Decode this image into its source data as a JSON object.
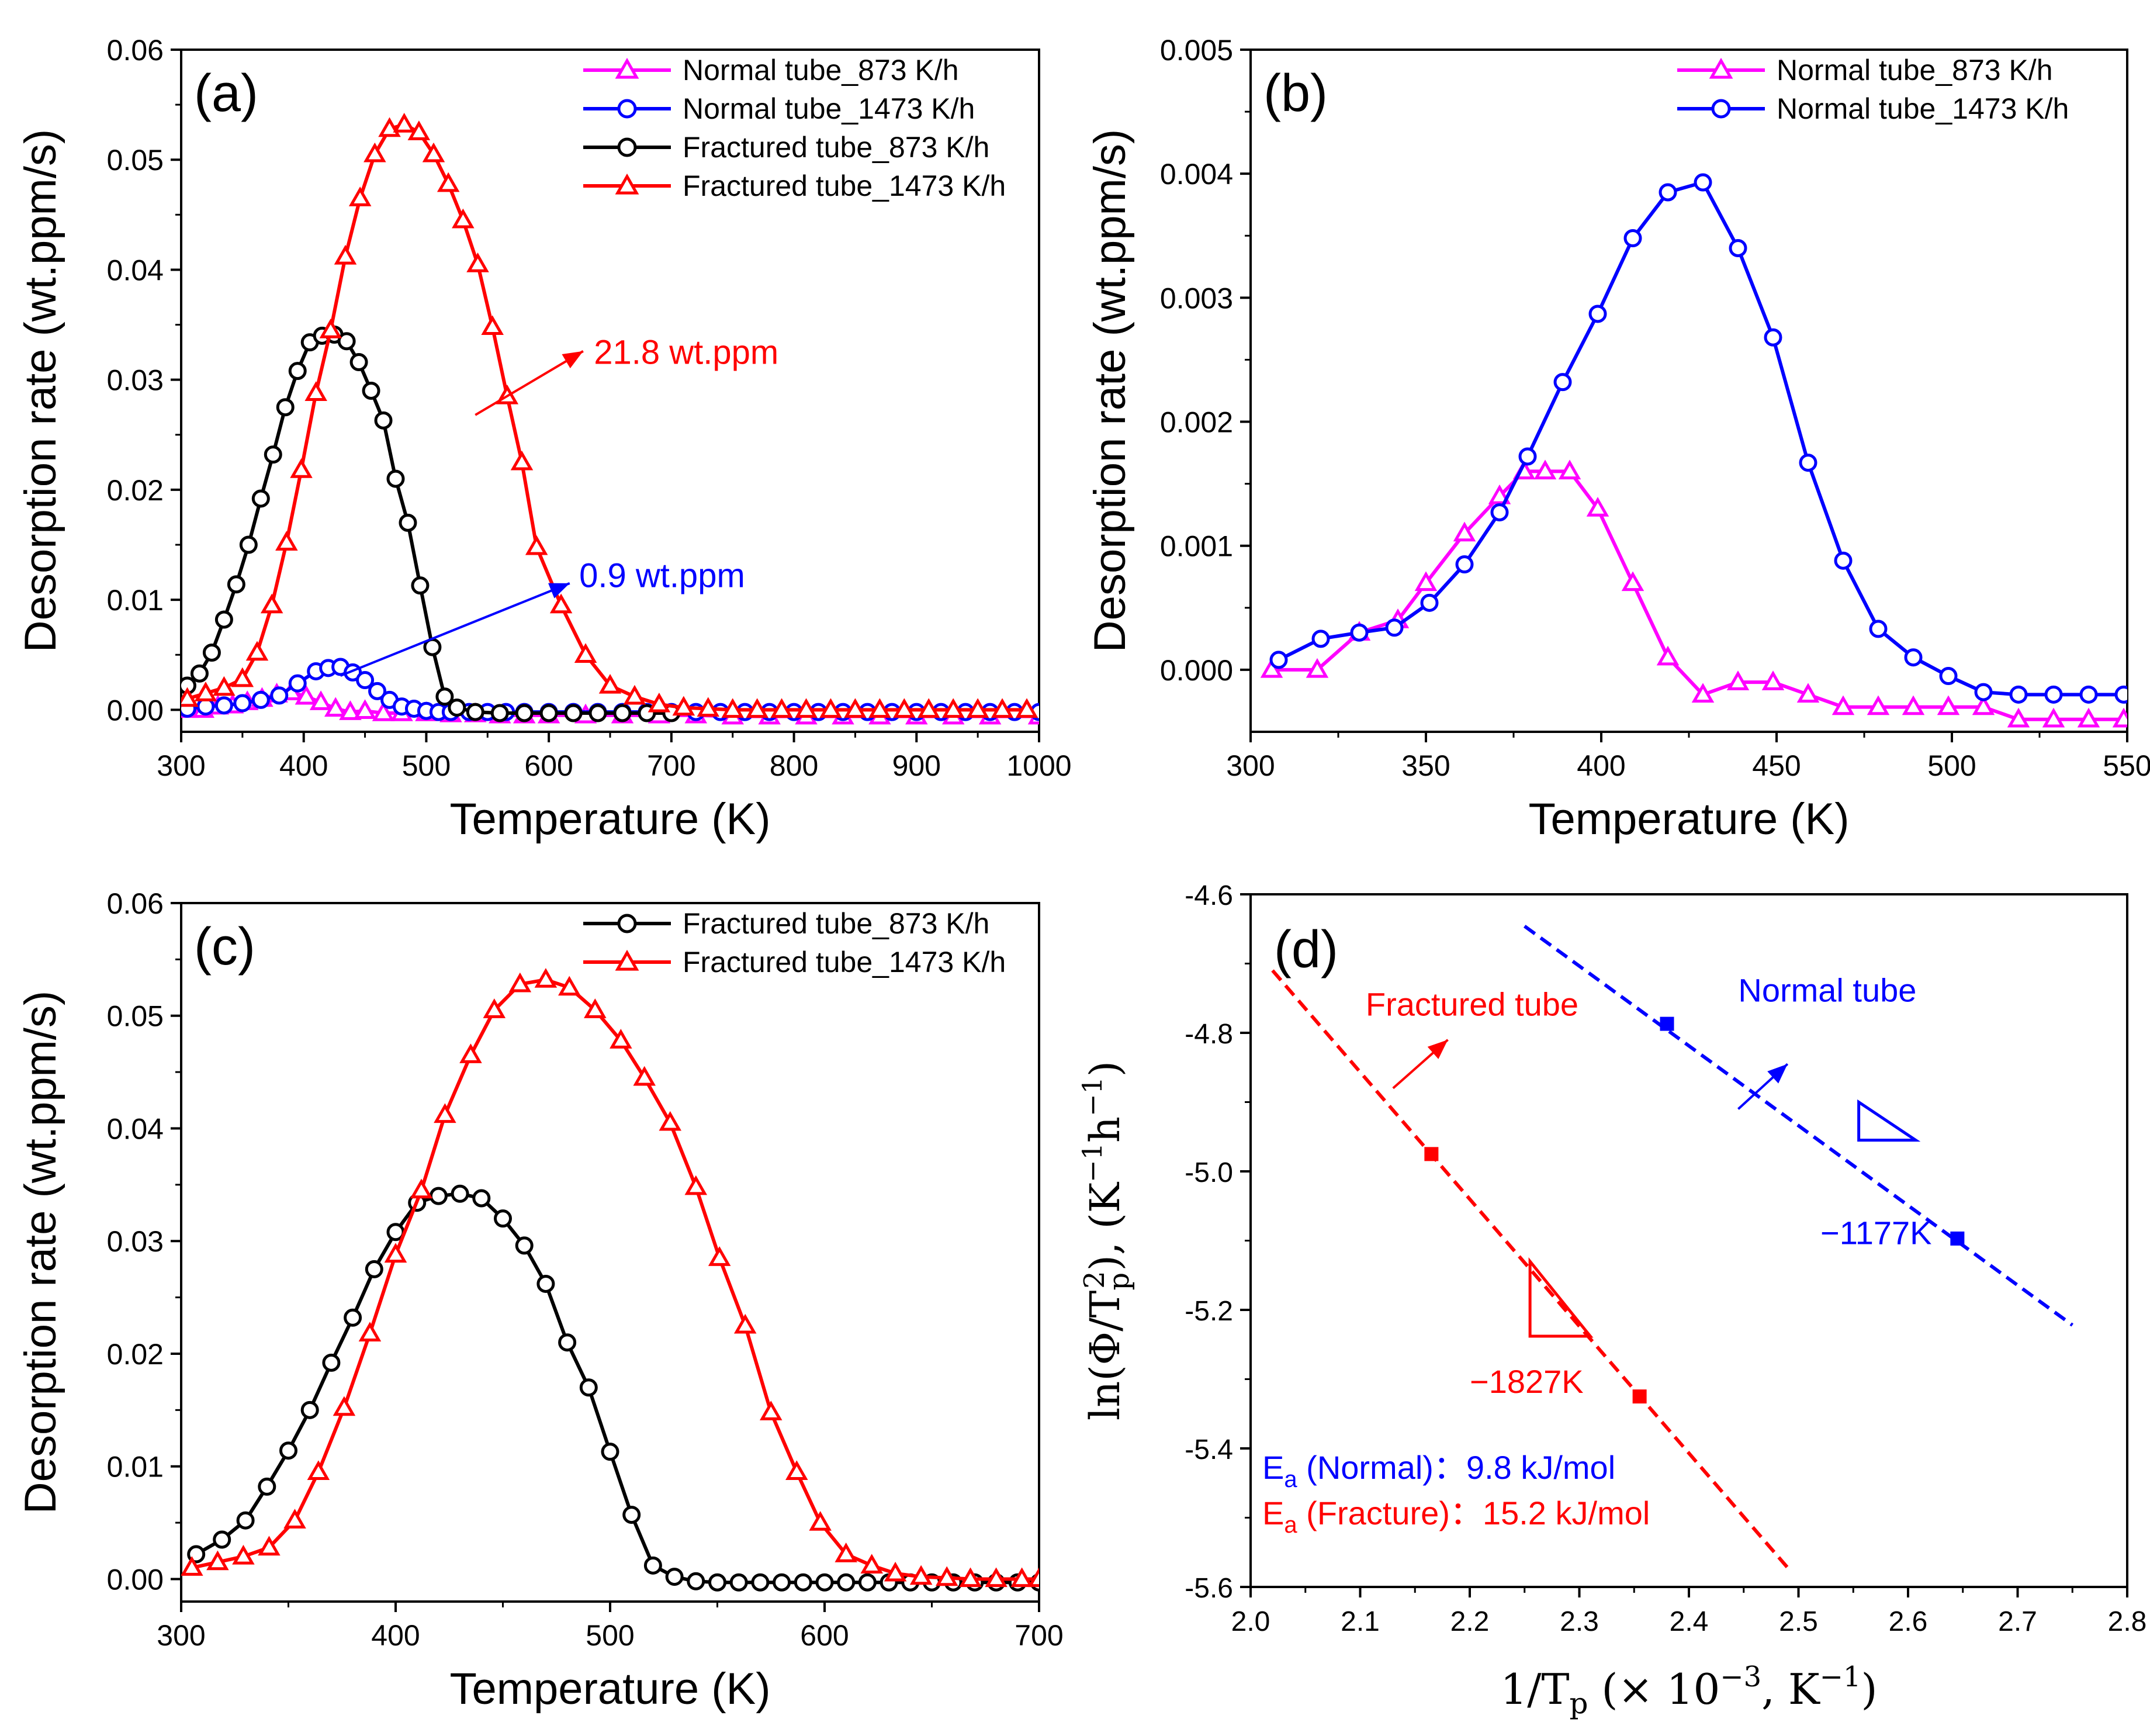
{
  "chart_data": [
    {
      "id": "a",
      "type": "line",
      "panel_label": "(a)",
      "xlabel": "Temperature (K)",
      "ylabel": "Desorption rate (wt.ppm/s)",
      "xlim": [
        300,
        1000
      ],
      "ylim": [
        -0.002,
        0.06
      ],
      "xticks": [
        300,
        400,
        500,
        600,
        700,
        800,
        900,
        1000
      ],
      "xtick_labels": [
        "300",
        "400",
        "500",
        "600",
        "700",
        "800",
        "900",
        "1000"
      ],
      "yticks": [
        0.0,
        0.01,
        0.02,
        0.03,
        0.04,
        0.05,
        0.06
      ],
      "ytick_labels": [
        "0.00",
        "0.01",
        "0.02",
        "0.03",
        "0.04",
        "0.05",
        "0.06"
      ],
      "legend_position": "top-right",
      "series": [
        {
          "name": "Normal tube_873 K/h",
          "color": "#ff00ff",
          "marker": "triangle",
          "dashed": false,
          "x": [
            305,
            318,
            330,
            342,
            354,
            366,
            378,
            390,
            402,
            414,
            426,
            438,
            450,
            465,
            480,
            500,
            520,
            540,
            560,
            580,
            600,
            630,
            660,
            690,
            720,
            750,
            780,
            810,
            840,
            870,
            900,
            930,
            960,
            1000
          ],
          "y": [
            0.0,
            0.0,
            0.0003,
            0.0004,
            0.0007,
            0.001,
            0.0014,
            0.0016,
            0.0012,
            0.0007,
            0.0001,
            -0.0002,
            -0.0001,
            -0.0003,
            -0.0003,
            -0.0003,
            -0.0004,
            -0.0004,
            -0.0005,
            -0.0005,
            -0.0005,
            -0.0005,
            -0.0005,
            -0.0005,
            -0.0005,
            -0.0006,
            -0.0006,
            -0.0006,
            -0.0006,
            -0.0006,
            -0.0006,
            -0.0006,
            -0.0006,
            -0.0006
          ]
        },
        {
          "name": "Normal tube_1473 K/h",
          "color": "#0000ff",
          "marker": "circle",
          "dashed": false,
          "x": [
            305,
            320,
            335,
            350,
            365,
            380,
            395,
            410,
            420,
            430,
            440,
            450,
            460,
            470,
            480,
            490,
            500,
            510,
            520,
            535,
            550,
            565,
            580,
            600,
            620,
            640,
            660,
            680,
            700,
            720,
            740,
            760,
            780,
            800,
            820,
            840,
            860,
            880,
            900,
            920,
            940,
            960,
            980,
            1000
          ],
          "y": [
            0.0001,
            0.0003,
            0.0004,
            0.0006,
            0.0009,
            0.0013,
            0.0024,
            0.0035,
            0.0038,
            0.0039,
            0.0034,
            0.0027,
            0.0017,
            0.0009,
            0.0003,
            0.0001,
            -0.0001,
            -0.0002,
            -0.0002,
            -0.0002,
            -0.0002,
            -0.0002,
            -0.0002,
            -0.0002,
            -0.0002,
            -0.0002,
            -0.0002,
            -0.0002,
            -0.0002,
            -0.0002,
            -0.0002,
            -0.0002,
            -0.0002,
            -0.0002,
            -0.0002,
            -0.0002,
            -0.0002,
            -0.0002,
            -0.0002,
            -0.0002,
            -0.0002,
            -0.0002,
            -0.0002,
            -0.0002
          ]
        },
        {
          "name": "Fractured tube_873 K/h",
          "color": "#000000",
          "marker": "circle",
          "dashed": false,
          "x": [
            305,
            315,
            325,
            335,
            345,
            355,
            365,
            375,
            385,
            395,
            405,
            415,
            425,
            435,
            445,
            455,
            465,
            475,
            485,
            495,
            505,
            515,
            525,
            540,
            560,
            580,
            600,
            620,
            640,
            660,
            680,
            700
          ],
          "y": [
            0.0022,
            0.0033,
            0.0052,
            0.0082,
            0.0114,
            0.015,
            0.0192,
            0.0232,
            0.0275,
            0.0308,
            0.0334,
            0.034,
            0.0341,
            0.0335,
            0.0316,
            0.029,
            0.0263,
            0.021,
            0.017,
            0.0113,
            0.0057,
            0.0012,
            0.0002,
            -0.0002,
            -0.0003,
            -0.0003,
            -0.0003,
            -0.0003,
            -0.0003,
            -0.0003,
            -0.0003,
            -0.0003
          ]
        },
        {
          "name": "Fractured tube_1473 K/h",
          "color": "#ff0000",
          "marker": "triangle",
          "dashed": false,
          "x": [
            305,
            320,
            335,
            350,
            362,
            374,
            386,
            398,
            410,
            422,
            434,
            446,
            458,
            470,
            482,
            494,
            506,
            518,
            530,
            542,
            554,
            566,
            578,
            590,
            610,
            630,
            650,
            670,
            690,
            710,
            730,
            750,
            770,
            790,
            810,
            830,
            850,
            870,
            890,
            910,
            930,
            950,
            970,
            990
          ],
          "y": [
            0.001,
            0.0015,
            0.002,
            0.0028,
            0.0052,
            0.0095,
            0.0152,
            0.0218,
            0.0288,
            0.0345,
            0.0412,
            0.0465,
            0.0505,
            0.0528,
            0.0532,
            0.0525,
            0.0505,
            0.0478,
            0.0445,
            0.0405,
            0.0348,
            0.0285,
            0.0225,
            0.0148,
            0.0095,
            0.005,
            0.0022,
            0.0012,
            0.0005,
            0.0002,
            0.0001,
            0.0,
            0.0,
            0.0,
            0.0,
            0.0,
            0.0,
            0.0,
            0.0,
            0.0,
            0.0,
            0.0,
            0.0,
            0.0
          ]
        }
      ],
      "annotations": [
        {
          "text": "21.8 wt.ppm",
          "color": "#ff0000",
          "from": [
            540,
            0.0268
          ],
          "to": [
            628,
            0.0326
          ],
          "label_at": [
            632,
            0.0325
          ]
        },
        {
          "text": "0.9 wt.ppm",
          "color": "#0000ff",
          "from": [
            430,
            0.0031
          ],
          "to": [
            617,
            0.0115
          ],
          "label_at": [
            620,
            0.0122
          ]
        }
      ]
    },
    {
      "id": "b",
      "type": "line",
      "panel_label": "(b)",
      "xlabel": "Temperature (K)",
      "ylabel": "Desorption rate (wt.ppm/s)",
      "xlim": [
        300,
        550
      ],
      "ylim": [
        -0.0005,
        0.005
      ],
      "xticks": [
        300,
        350,
        400,
        450,
        500,
        550
      ],
      "xtick_labels": [
        "300",
        "350",
        "400",
        "450",
        "500",
        "550"
      ],
      "yticks": [
        0.0,
        0.001,
        0.002,
        0.003,
        0.004,
        0.005
      ],
      "ytick_labels": [
        "0.000",
        "0.001",
        "0.002",
        "0.003",
        "0.004",
        "0.005"
      ],
      "legend_position": "top-right",
      "series": [
        {
          "name": "Normal tube_873 K/h",
          "color": "#ff00ff",
          "marker": "triangle",
          "dashed": false,
          "x": [
            306,
            319,
            331,
            342,
            350,
            361,
            371,
            378,
            384,
            391,
            399,
            409,
            419,
            429,
            439,
            449,
            459,
            469,
            479,
            489,
            499,
            509,
            519,
            529,
            539,
            549
          ],
          "y": [
            0.0,
            0.0,
            0.0003,
            0.0004,
            0.0007,
            0.0011,
            0.0014,
            0.0016,
            0.0016,
            0.0016,
            0.0013,
            0.0007,
            0.0001,
            -0.0002,
            -0.0001,
            -0.0001,
            -0.0002,
            -0.0003,
            -0.0003,
            -0.0003,
            -0.0003,
            -0.0003,
            -0.0004,
            -0.0004,
            -0.0004,
            -0.0004
          ]
        },
        {
          "name": "Normal tube_1473 K/h",
          "color": "#0000ff",
          "marker": "circle",
          "dashed": false,
          "x": [
            308,
            320,
            331,
            341,
            351,
            361,
            371,
            379,
            389,
            399,
            409,
            419,
            429,
            439,
            449,
            459,
            469,
            479,
            489,
            499,
            509,
            519,
            529,
            539,
            549
          ],
          "y": [
            8e-05,
            0.00025,
            0.0003,
            0.00034,
            0.00054,
            0.00085,
            0.00127,
            0.00172,
            0.00232,
            0.00287,
            0.00348,
            0.00385,
            0.00393,
            0.0034,
            0.00268,
            0.00167,
            0.00088,
            0.00033,
            0.0001,
            -5e-05,
            -0.00018,
            -0.0002,
            -0.0002,
            -0.0002,
            -0.0002
          ]
        }
      ],
      "annotations": []
    },
    {
      "id": "c",
      "type": "line",
      "panel_label": "(c)",
      "xlabel": "Temperature (K)",
      "ylabel": "Desorption rate (wt.ppm/s)",
      "xlim": [
        300,
        700
      ],
      "ylim": [
        -0.002,
        0.06
      ],
      "xticks": [
        300,
        400,
        500,
        600,
        700
      ],
      "xtick_labels": [
        "300",
        "400",
        "500",
        "600",
        "700"
      ],
      "yticks": [
        0.0,
        0.01,
        0.02,
        0.03,
        0.04,
        0.05,
        0.06
      ],
      "ytick_labels": [
        "0.00",
        "0.01",
        "0.02",
        "0.03",
        "0.04",
        "0.05",
        "0.06"
      ],
      "legend_position": "top-right",
      "series": [
        {
          "name": "Fractured tube_873 K/h",
          "color": "#000000",
          "marker": "circle",
          "dashed": false,
          "x": [
            307,
            319,
            330,
            340,
            350,
            360,
            370,
            380,
            390,
            400,
            410,
            420,
            430,
            440,
            450,
            460,
            470,
            480,
            490,
            500,
            510,
            520,
            530,
            540,
            550,
            560,
            570,
            580,
            590,
            600,
            610,
            620,
            630,
            640,
            650,
            660,
            670,
            680,
            690,
            700
          ],
          "y": [
            0.0022,
            0.0035,
            0.0052,
            0.0082,
            0.0114,
            0.015,
            0.0192,
            0.0232,
            0.0275,
            0.0308,
            0.0334,
            0.034,
            0.0342,
            0.0338,
            0.032,
            0.0296,
            0.0262,
            0.021,
            0.017,
            0.0113,
            0.0057,
            0.0012,
            0.0002,
            -0.0002,
            -0.0003,
            -0.0003,
            -0.0003,
            -0.0003,
            -0.0003,
            -0.0003,
            -0.0003,
            -0.0003,
            -0.0003,
            -0.0003,
            -0.0003,
            -0.0003,
            -0.0003,
            -0.0003,
            -0.0003,
            -0.0003
          ]
        },
        {
          "name": "Fractured tube_1473 K/h",
          "color": "#ff0000",
          "marker": "triangle",
          "dashed": false,
          "x": [
            305,
            317,
            329,
            341,
            353,
            364,
            376,
            388,
            400,
            412,
            423,
            435,
            446,
            458,
            470,
            481,
            493,
            505,
            516,
            528,
            540,
            551,
            563,
            575,
            587,
            598,
            610,
            622,
            633,
            645,
            657,
            668,
            680,
            692,
            700
          ],
          "y": [
            0.001,
            0.0015,
            0.002,
            0.0028,
            0.0052,
            0.0095,
            0.0152,
            0.0218,
            0.0288,
            0.0345,
            0.0412,
            0.0465,
            0.0505,
            0.0528,
            0.0532,
            0.0525,
            0.0505,
            0.0478,
            0.0445,
            0.0405,
            0.0348,
            0.0285,
            0.0225,
            0.0148,
            0.0095,
            0.005,
            0.0022,
            0.0012,
            0.0005,
            0.0002,
            0.0001,
            0.0,
            0.0,
            0.0,
            0.0
          ]
        }
      ],
      "annotations": []
    },
    {
      "id": "d",
      "type": "scatter",
      "panel_label": "(d)",
      "xlabel": "1/T",
      "xlabel_sub": "p",
      "xlabel_suffix": " (× 10",
      "xlabel_exp": "−3",
      "xlabel_end": ", K",
      "xlabel_end_exp": "−1",
      "xlabel_close": ")",
      "ylabel": "ln(Φ/T",
      "ylabel_sub": "p",
      "ylabel_sup": "2",
      "ylabel_mid": "), (K",
      "ylabel_exp1": "−1",
      "ylabel_h": "h",
      "ylabel_exp2": "−1",
      "ylabel_close": ")",
      "xlim": [
        2.0,
        2.8
      ],
      "ylim": [
        -5.6,
        -4.6
      ],
      "xticks": [
        2.0,
        2.1,
        2.2,
        2.3,
        2.4,
        2.5,
        2.6,
        2.7,
        2.8
      ],
      "xtick_labels": [
        "2.0",
        "2.1",
        "2.2",
        "2.3",
        "2.4",
        "2.5",
        "2.6",
        "2.7",
        "2.8"
      ],
      "yticks": [
        -5.6,
        -5.4,
        -5.2,
        -5.0,
        -4.8,
        -4.6
      ],
      "ytick_labels": [
        "-5.6",
        "-5.4",
        "-5.2",
        "-5.0",
        "-4.8",
        "-4.6"
      ],
      "series": [
        {
          "name": "Fractured tube",
          "color": "#ff0000",
          "points_x": [
            2.165,
            2.355
          ],
          "points_y": [
            -4.975,
            -5.325
          ],
          "fit_x": [
            2.02,
            2.49
          ],
          "fit_y": [
            -4.71,
            -5.572
          ]
        },
        {
          "name": "Normal tube",
          "color": "#0000ff",
          "points_x": [
            2.38,
            2.645
          ],
          "points_y": [
            -4.787,
            -5.097
          ],
          "fit_x": [
            2.25,
            2.75
          ],
          "fit_y": [
            -4.646,
            -5.222
          ]
        }
      ],
      "annotations": [
        {
          "text": "Fractured tube",
          "color": "#ff0000",
          "from": [
            2.13,
            -4.88
          ],
          "to": [
            2.18,
            -4.81
          ],
          "label_at": [
            2.105,
            -4.775
          ]
        },
        {
          "text": "Normal tube",
          "color": "#0000ff",
          "from": [
            2.445,
            -4.91
          ],
          "to": [
            2.49,
            -4.845
          ],
          "label_at": [
            2.445,
            -4.755
          ]
        },
        {
          "text": "−1827K",
          "color": "#ff0000",
          "label_at": [
            2.2,
            -5.32
          ]
        },
        {
          "text": "−1177K",
          "color": "#0000ff",
          "label_at": [
            2.52,
            -5.105
          ]
        }
      ],
      "slope_triangles": [
        {
          "color": "#ff0000",
          "x": [
            2.255,
            2.255,
            2.31
          ],
          "y": [
            -5.13,
            -5.238,
            -5.238
          ]
        },
        {
          "color": "#0000ff",
          "x": [
            2.555,
            2.555,
            2.607
          ],
          "y": [
            -4.9,
            -4.955,
            -4.955
          ]
        }
      ],
      "ea_labels": [
        {
          "symbol": "E",
          "sub": "a",
          "text": " (Normal)：9.8 kJ/mol",
          "color": "#0000ff"
        },
        {
          "symbol": "E",
          "sub": "a",
          "text": " (Fracture)：15.2 kJ/mol",
          "color": "#ff0000"
        }
      ]
    }
  ]
}
